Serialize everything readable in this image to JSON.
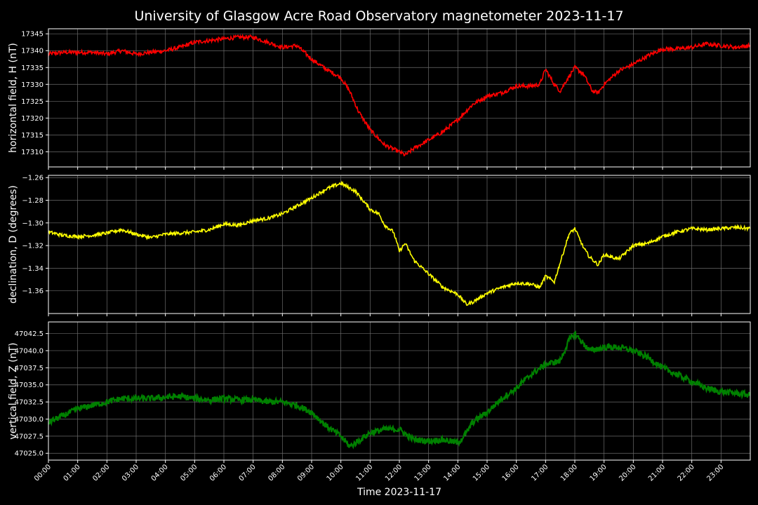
{
  "chart_data": {
    "type": "line",
    "title": "University of Glasgow Acre Road Observatory magnetometer 2023-11-17",
    "xlabel": "Time 2023-11-17",
    "x_tick_labels": [
      "00:00",
      "01:00",
      "02:00",
      "03:00",
      "04:00",
      "05:00",
      "06:00",
      "07:00",
      "08:00",
      "09:00",
      "10:00",
      "11:00",
      "12:00",
      "13:00",
      "14:00",
      "15:00",
      "16:00",
      "17:00",
      "18:00",
      "19:00",
      "20:00",
      "21:00",
      "22:00",
      "23:00"
    ],
    "xlim_hours": [
      0,
      24
    ],
    "grid": true,
    "background": "#000000",
    "panels": [
      {
        "ylabel": "horizontal field, H (nT)",
        "color": "#ff0000",
        "ylim": [
          17305.5,
          17346.5
        ],
        "yticks": [
          17310,
          17315,
          17320,
          17325,
          17330,
          17335,
          17340,
          17345
        ],
        "ytick_labels": [
          "17310",
          "17315",
          "17320",
          "17325",
          "17330",
          "17335",
          "17340",
          "17345"
        ],
        "noise": 0.6,
        "points": [
          [
            0,
            17339
          ],
          [
            0.5,
            17339.5
          ],
          [
            1,
            17339.5
          ],
          [
            1.5,
            17339.5
          ],
          [
            2,
            17339
          ],
          [
            2.5,
            17340
          ],
          [
            3,
            17339
          ],
          [
            3.5,
            17339.5
          ],
          [
            4,
            17340
          ],
          [
            4.5,
            17341
          ],
          [
            5,
            17342.5
          ],
          [
            5.5,
            17343
          ],
          [
            6,
            17343.5
          ],
          [
            6.5,
            17344
          ],
          [
            7,
            17344
          ],
          [
            7.5,
            17342.5
          ],
          [
            8,
            17341
          ],
          [
            8.5,
            17341.5
          ],
          [
            9,
            17337.5
          ],
          [
            9.5,
            17334.5
          ],
          [
            10,
            17332
          ],
          [
            10.3,
            17328
          ],
          [
            10.6,
            17322
          ],
          [
            11,
            17316.5
          ],
          [
            11.5,
            17312
          ],
          [
            12,
            17310
          ],
          [
            12.2,
            17309
          ],
          [
            12.5,
            17311
          ],
          [
            13,
            17313.5
          ],
          [
            13.5,
            17316
          ],
          [
            14,
            17319.5
          ],
          [
            14.5,
            17324
          ],
          [
            15,
            17326.5
          ],
          [
            15.5,
            17327.5
          ],
          [
            16,
            17329.5
          ],
          [
            16.5,
            17329.5
          ],
          [
            16.8,
            17330
          ],
          [
            17,
            17334.5
          ],
          [
            17.3,
            17330
          ],
          [
            17.5,
            17328
          ],
          [
            17.7,
            17331
          ],
          [
            18,
            17335
          ],
          [
            18.3,
            17333
          ],
          [
            18.6,
            17328
          ],
          [
            18.8,
            17327.5
          ],
          [
            19,
            17330
          ],
          [
            19.5,
            17334
          ],
          [
            20,
            17336
          ],
          [
            20.5,
            17338.5
          ],
          [
            21,
            17340.5
          ],
          [
            21.5,
            17340.5
          ],
          [
            22,
            17341
          ],
          [
            22.5,
            17342
          ],
          [
            23,
            17341.5
          ],
          [
            23.5,
            17341
          ],
          [
            24,
            17341.5
          ]
        ]
      },
      {
        "ylabel": "declination, D (degrees)",
        "color": "#ffff00",
        "ylim": [
          -1.38,
          -1.258
        ],
        "yticks": [
          -1.36,
          -1.34,
          -1.32,
          -1.3,
          -1.28,
          -1.26
        ],
        "ytick_labels": [
          "−1.36",
          "−1.34",
          "−1.32",
          "−1.30",
          "−1.28",
          "−1.26"
        ],
        "noise": 0.0015,
        "points": [
          [
            0,
            -1.308
          ],
          [
            0.5,
            -1.311
          ],
          [
            1,
            -1.312
          ],
          [
            1.5,
            -1.311
          ],
          [
            2,
            -1.309
          ],
          [
            2.5,
            -1.306
          ],
          [
            3,
            -1.31
          ],
          [
            3.5,
            -1.313
          ],
          [
            4,
            -1.31
          ],
          [
            5,
            -1.308
          ],
          [
            5.5,
            -1.306
          ],
          [
            6,
            -1.301
          ],
          [
            6.5,
            -1.302
          ],
          [
            7,
            -1.298
          ],
          [
            7.5,
            -1.296
          ],
          [
            8,
            -1.292
          ],
          [
            8.5,
            -1.285
          ],
          [
            9,
            -1.278
          ],
          [
            9.5,
            -1.27
          ],
          [
            10,
            -1.265
          ],
          [
            10.5,
            -1.272
          ],
          [
            11,
            -1.288
          ],
          [
            11.3,
            -1.292
          ],
          [
            11.5,
            -1.302
          ],
          [
            11.8,
            -1.308
          ],
          [
            12,
            -1.325
          ],
          [
            12.2,
            -1.318
          ],
          [
            12.5,
            -1.333
          ],
          [
            13,
            -1.345
          ],
          [
            13.5,
            -1.357
          ],
          [
            14,
            -1.363
          ],
          [
            14.3,
            -1.372
          ],
          [
            14.5,
            -1.37
          ],
          [
            15,
            -1.362
          ],
          [
            15.5,
            -1.357
          ],
          [
            16,
            -1.353
          ],
          [
            16.5,
            -1.354
          ],
          [
            16.8,
            -1.357
          ],
          [
            17,
            -1.347
          ],
          [
            17.3,
            -1.352
          ],
          [
            17.5,
            -1.335
          ],
          [
            17.8,
            -1.31
          ],
          [
            18,
            -1.305
          ],
          [
            18.3,
            -1.322
          ],
          [
            18.5,
            -1.33
          ],
          [
            18.8,
            -1.337
          ],
          [
            19,
            -1.328
          ],
          [
            19.5,
            -1.332
          ],
          [
            20,
            -1.32
          ],
          [
            20.5,
            -1.318
          ],
          [
            21,
            -1.312
          ],
          [
            21.5,
            -1.308
          ],
          [
            22,
            -1.305
          ],
          [
            22.5,
            -1.306
          ],
          [
            23,
            -1.305
          ],
          [
            23.5,
            -1.304
          ],
          [
            24,
            -1.305
          ]
        ]
      },
      {
        "ylabel": "vertical field, Z (nT)",
        "color": "#008000",
        "ylim": [
          47024.0,
          47044.2
        ],
        "yticks": [
          47025.0,
          47027.5,
          47030.0,
          47032.5,
          47035.0,
          47037.5,
          47040.0,
          47042.5
        ],
        "ytick_labels": [
          "47025.0",
          "47027.5",
          "47030.0",
          "47032.5",
          "47035.0",
          "47037.5",
          "47040.0",
          "47042.5"
        ],
        "noise": 0.45,
        "points": [
          [
            0,
            47029.5
          ],
          [
            0.5,
            47030.5
          ],
          [
            1,
            47031.5
          ],
          [
            1.5,
            47032
          ],
          [
            2,
            47032.5
          ],
          [
            2.5,
            47033
          ],
          [
            3,
            47033
          ],
          [
            3.5,
            47033
          ],
          [
            4,
            47033.2
          ],
          [
            4.5,
            47033.3
          ],
          [
            5,
            47033
          ],
          [
            5.5,
            47032.8
          ],
          [
            6,
            47033
          ],
          [
            6.5,
            47032.8
          ],
          [
            7,
            47032.8
          ],
          [
            7.5,
            47032.5
          ],
          [
            8,
            47032.5
          ],
          [
            8.5,
            47032
          ],
          [
            9,
            47031
          ],
          [
            9.5,
            47029
          ],
          [
            10,
            47027.5
          ],
          [
            10.3,
            47026
          ],
          [
            10.5,
            47026.5
          ],
          [
            11,
            47028
          ],
          [
            11.5,
            47028.5
          ],
          [
            12,
            47028.5
          ],
          [
            12.3,
            47027.5
          ],
          [
            12.5,
            47027
          ],
          [
            13,
            47026.8
          ],
          [
            13.5,
            47027
          ],
          [
            14,
            47026.5
          ],
          [
            14.3,
            47028
          ],
          [
            14.5,
            47029.5
          ],
          [
            15,
            47031
          ],
          [
            15.5,
            47033
          ],
          [
            16,
            47034.5
          ],
          [
            16.5,
            47036.5
          ],
          [
            17,
            47038
          ],
          [
            17.5,
            47038.5
          ],
          [
            17.8,
            47041.5
          ],
          [
            18,
            47042.5
          ],
          [
            18.3,
            47041
          ],
          [
            18.5,
            47040
          ],
          [
            19,
            47040.5
          ],
          [
            19.5,
            47040.5
          ],
          [
            20,
            47040
          ],
          [
            20.5,
            47039
          ],
          [
            21,
            47037.5
          ],
          [
            21.5,
            47036.5
          ],
          [
            22,
            47035.5
          ],
          [
            22.5,
            47034.5
          ],
          [
            23,
            47034
          ],
          [
            23.5,
            47033.8
          ],
          [
            24,
            47033.5
          ]
        ]
      }
    ]
  }
}
